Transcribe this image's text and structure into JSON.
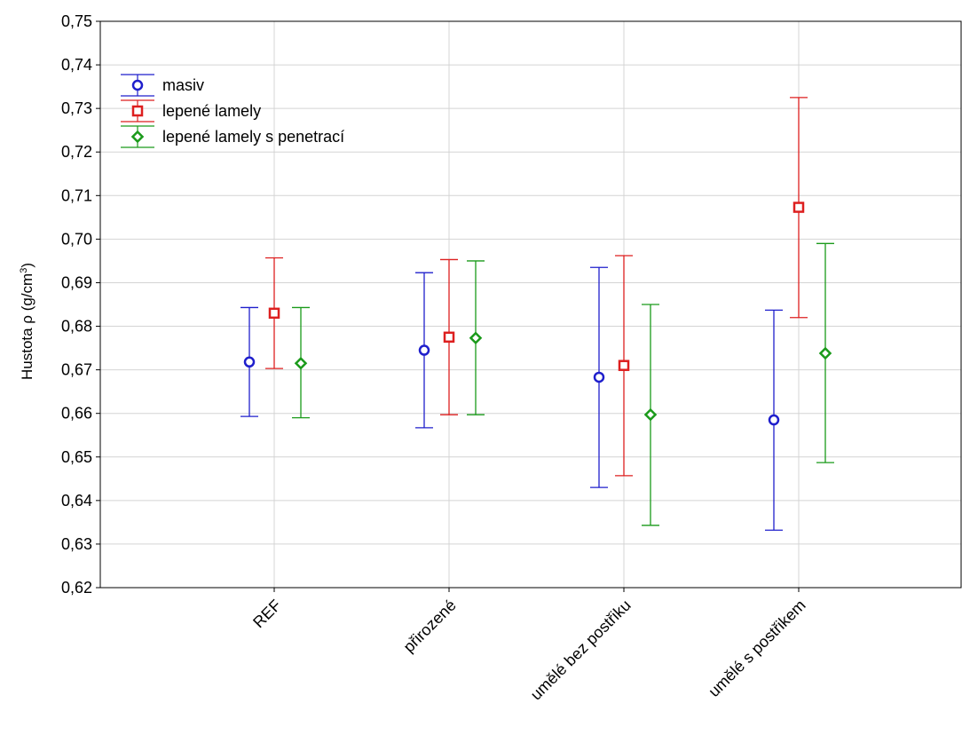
{
  "chart_data": {
    "type": "errorbar",
    "title": "",
    "xlabel": "",
    "ylabel": "Hustota ρ (g/cm³)",
    "ylabel_base": "Hustota ρ (g/cm",
    "ylabel_sup": "3",
    "ylabel_tail": ")",
    "ylim": [
      0.62,
      0.75
    ],
    "yticks": [
      "0,62",
      "0,63",
      "0,64",
      "0,65",
      "0,66",
      "0,67",
      "0,68",
      "0,69",
      "0,70",
      "0,71",
      "0,72",
      "0,73",
      "0,74",
      "0,75"
    ],
    "categories": [
      "REF",
      "přirozené",
      "umělé bez postřiku",
      "umělé s postřikem"
    ],
    "grid": true,
    "legend_position": "top-left",
    "series": [
      {
        "name": "masiv",
        "color": "#1f1fcc",
        "marker": "circle",
        "mean": [
          0.6718,
          0.6745,
          0.6683,
          0.6585
        ],
        "lower": [
          0.6593,
          0.6567,
          0.643,
          0.6332
        ],
        "upper": [
          0.6843,
          0.6923,
          0.6935,
          0.6837
        ]
      },
      {
        "name": "lepené lamely",
        "color": "#dd1f1f",
        "marker": "square",
        "mean": [
          0.683,
          0.6775,
          0.671,
          0.7073
        ],
        "lower": [
          0.6703,
          0.6597,
          0.6457,
          0.682
        ],
        "upper": [
          0.6957,
          0.6953,
          0.6962,
          0.7325
        ]
      },
      {
        "name": "lepené lamely s penetrací",
        "color": "#1a9a1a",
        "marker": "diamond",
        "mean": [
          0.6715,
          0.6773,
          0.6597,
          0.6738
        ],
        "lower": [
          0.659,
          0.6597,
          0.6343,
          0.6487
        ],
        "upper": [
          0.6843,
          0.695,
          0.685,
          0.699
        ]
      }
    ]
  }
}
